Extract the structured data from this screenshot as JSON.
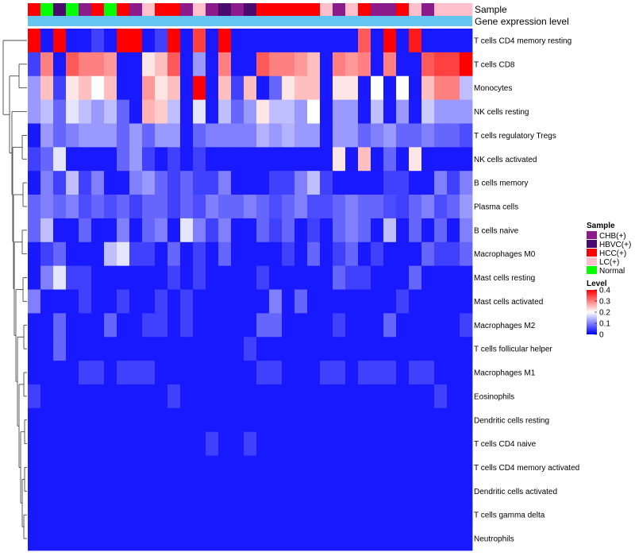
{
  "chart_data": {
    "type": "heatmap",
    "annotation_labels": {
      "sample": "Sample",
      "gene_expression": "Gene expression level"
    },
    "rows": [
      "T cells CD4 memory resting",
      "T cells CD8",
      "Monocytes",
      "NK cells resting",
      "T cells regulatory  Tregs",
      "NK cells activated",
      "B cells memory",
      "Plasma cells",
      "B cells naive",
      "Macrophages M0",
      "Mast cells resting",
      "Mast cells activated",
      "Macrophages M2",
      "T cells follicular helper",
      "Macrophages M1",
      "Eosinophils",
      "Dendritic cells resting",
      "T cells CD4 naive",
      "T cells CD4 memory activated",
      "Dendritic cells activated",
      "T cells gamma delta",
      "Neutrophils"
    ],
    "sample_groups": [
      "HCC",
      "NOR",
      "HBV",
      "NOR",
      "CHB",
      "HCC",
      "NOR",
      "HCC",
      "CHB",
      "LC",
      "HCC",
      "HCC",
      "CHB",
      "LC",
      "CHB",
      "HBV",
      "CHB",
      "HBV",
      "HCC",
      "HCC",
      "HCC",
      "HCC",
      "HCC",
      "LC",
      "CHB",
      "LC",
      "HCC",
      "CHB",
      "CHB",
      "HCC",
      "LC",
      "CHB",
      "LC",
      "LC",
      "LC"
    ],
    "values": [
      [
        0.4,
        0.02,
        0.4,
        0.02,
        0.02,
        0.05,
        0.02,
        0.4,
        0.4,
        0.02,
        0.05,
        0.4,
        0.02,
        0.35,
        0.02,
        0.4,
        0.02,
        0.02,
        0.02,
        0.02,
        0.02,
        0.02,
        0.02,
        0.02,
        0.02,
        0.02,
        0.33,
        0.02,
        0.4,
        0.02,
        0.38,
        0.02,
        0.02,
        0.02,
        0.02
      ],
      [
        0.05,
        0.3,
        0.02,
        0.33,
        0.3,
        0.3,
        0.28,
        0.02,
        0.02,
        0.22,
        0.25,
        0.33,
        0.02,
        0.12,
        0.02,
        0.3,
        0.02,
        0.02,
        0.33,
        0.3,
        0.3,
        0.28,
        0.25,
        0.02,
        0.3,
        0.28,
        0.3,
        0.02,
        0.3,
        0.02,
        0.02,
        0.33,
        0.35,
        0.35,
        0.4
      ],
      [
        0.12,
        0.25,
        0.05,
        0.22,
        0.25,
        0.2,
        0.25,
        0.02,
        0.02,
        0.28,
        0.22,
        0.25,
        0.02,
        0.4,
        0.02,
        0.25,
        0.05,
        0.25,
        0.02,
        0.08,
        0.22,
        0.25,
        0.25,
        0.02,
        0.22,
        0.22,
        0.02,
        0.2,
        0.02,
        0.2,
        0.02,
        0.25,
        0.3,
        0.3,
        0.15
      ],
      [
        0.12,
        0.15,
        0.08,
        0.18,
        0.15,
        0.12,
        0.15,
        0.08,
        0.02,
        0.26,
        0.24,
        0.15,
        0.02,
        0.18,
        0.02,
        0.15,
        0.08,
        0.12,
        0.22,
        0.15,
        0.15,
        0.12,
        0.2,
        0.02,
        0.12,
        0.12,
        0.02,
        0.15,
        0.02,
        0.12,
        0.02,
        0.16,
        0.12,
        0.12,
        0.12
      ],
      [
        0.02,
        0.12,
        0.08,
        0.1,
        0.12,
        0.12,
        0.12,
        0.08,
        0.12,
        0.08,
        0.12,
        0.12,
        0.02,
        0.08,
        0.1,
        0.1,
        0.1,
        0.1,
        0.14,
        0.12,
        0.14,
        0.12,
        0.12,
        0.02,
        0.12,
        0.12,
        0.08,
        0.1,
        0.12,
        0.08,
        0.08,
        0.1,
        0.08,
        0.08,
        0.06
      ],
      [
        0.05,
        0.08,
        0.18,
        0.02,
        0.02,
        0.02,
        0.02,
        0.08,
        0.12,
        0.05,
        0.02,
        0.05,
        0.02,
        0.05,
        0.02,
        0.02,
        0.02,
        0.02,
        0.02,
        0.02,
        0.02,
        0.02,
        0.02,
        0.02,
        0.22,
        0.02,
        0.25,
        0.02,
        0.08,
        0.02,
        0.22,
        0.02,
        0.02,
        0.02,
        0.02
      ],
      [
        0.02,
        0.1,
        0.05,
        0.15,
        0.05,
        0.1,
        0.02,
        0.02,
        0.1,
        0.12,
        0.08,
        0.05,
        0.08,
        0.05,
        0.05,
        0.1,
        0.02,
        0.02,
        0.02,
        0.05,
        0.05,
        0.1,
        0.15,
        0.05,
        0.02,
        0.02,
        0.02,
        0.02,
        0.05,
        0.05,
        0.02,
        0.02,
        0.1,
        0.05,
        0.1
      ],
      [
        0.08,
        0.1,
        0.08,
        0.1,
        0.06,
        0.08,
        0.06,
        0.08,
        0.05,
        0.08,
        0.08,
        0.05,
        0.08,
        0.06,
        0.1,
        0.08,
        0.08,
        0.1,
        0.08,
        0.06,
        0.08,
        0.1,
        0.06,
        0.06,
        0.08,
        0.1,
        0.08,
        0.08,
        0.06,
        0.05,
        0.08,
        0.1,
        0.06,
        0.08,
        0.12
      ],
      [
        0.08,
        0.15,
        0.02,
        0.02,
        0.08,
        0.02,
        0.02,
        0.1,
        0.02,
        0.08,
        0.1,
        0.02,
        0.18,
        0.1,
        0.05,
        0.1,
        0.02,
        0.02,
        0.08,
        0.05,
        0.08,
        0.02,
        0.05,
        0.02,
        0.08,
        0.1,
        0.08,
        0.02,
        0.15,
        0.02,
        0.08,
        0.02,
        0.08,
        0.02,
        0.1
      ],
      [
        0.02,
        0.05,
        0.08,
        0.02,
        0.02,
        0.02,
        0.15,
        0.18,
        0.05,
        0.05,
        0.02,
        0.08,
        0.02,
        0.05,
        0.02,
        0.08,
        0.02,
        0.02,
        0.02,
        0.02,
        0.05,
        0.02,
        0.08,
        0.02,
        0.05,
        0.08,
        0.02,
        0.05,
        0.02,
        0.02,
        0.02,
        0.08,
        0.05,
        0.05,
        0.08
      ],
      [
        0.02,
        0.1,
        0.18,
        0.05,
        0.05,
        0.02,
        0.02,
        0.02,
        0.02,
        0.02,
        0.02,
        0.05,
        0.02,
        0.05,
        0.02,
        0.02,
        0.02,
        0.02,
        0.05,
        0.02,
        0.02,
        0.02,
        0.02,
        0.02,
        0.08,
        0.05,
        0.05,
        0.02,
        0.02,
        0.02,
        0.08,
        0.02,
        0.02,
        0.02,
        0.02
      ],
      [
        0.1,
        0.02,
        0.02,
        0.02,
        0.05,
        0.02,
        0.02,
        0.05,
        0.02,
        0.02,
        0.05,
        0.02,
        0.05,
        0.02,
        0.02,
        0.02,
        0.02,
        0.02,
        0.02,
        0.1,
        0.02,
        0.08,
        0.02,
        0.02,
        0.02,
        0.02,
        0.02,
        0.02,
        0.02,
        0.05,
        0.02,
        0.02,
        0.02,
        0.02,
        0.02
      ],
      [
        0.02,
        0.02,
        0.08,
        0.02,
        0.02,
        0.02,
        0.08,
        0.02,
        0.02,
        0.05,
        0.05,
        0.02,
        0.05,
        0.02,
        0.02,
        0.02,
        0.02,
        0.02,
        0.08,
        0.08,
        0.02,
        0.02,
        0.02,
        0.02,
        0.05,
        0.02,
        0.02,
        0.02,
        0.08,
        0.02,
        0.02,
        0.02,
        0.02,
        0.02,
        0.05
      ],
      [
        0.02,
        0.02,
        0.08,
        0.02,
        0.02,
        0.02,
        0.02,
        0.02,
        0.02,
        0.02,
        0.02,
        0.02,
        0.02,
        0.02,
        0.02,
        0.02,
        0.02,
        0.05,
        0.02,
        0.02,
        0.02,
        0.02,
        0.02,
        0.02,
        0.02,
        0.02,
        0.02,
        0.02,
        0.02,
        0.02,
        0.02,
        0.02,
        0.02,
        0.02,
        0.02
      ],
      [
        0.02,
        0.02,
        0.02,
        0.02,
        0.05,
        0.05,
        0.02,
        0.05,
        0.05,
        0.05,
        0.02,
        0.02,
        0.02,
        0.02,
        0.02,
        0.02,
        0.02,
        0.02,
        0.05,
        0.05,
        0.02,
        0.02,
        0.02,
        0.05,
        0.05,
        0.02,
        0.05,
        0.05,
        0.05,
        0.02,
        0.05,
        0.05,
        0.02,
        0.02,
        0.02
      ],
      [
        0.05,
        0.02,
        0.02,
        0.02,
        0.02,
        0.02,
        0.02,
        0.02,
        0.02,
        0.02,
        0.02,
        0.05,
        0.02,
        0.02,
        0.02,
        0.02,
        0.02,
        0.02,
        0.02,
        0.02,
        0.02,
        0.02,
        0.02,
        0.02,
        0.02,
        0.02,
        0.02,
        0.02,
        0.02,
        0.02,
        0.02,
        0.02,
        0.05,
        0.02,
        0.02
      ],
      [
        0.02,
        0.02,
        0.02,
        0.02,
        0.02,
        0.02,
        0.02,
        0.02,
        0.02,
        0.02,
        0.02,
        0.02,
        0.02,
        0.02,
        0.02,
        0.02,
        0.02,
        0.02,
        0.02,
        0.02,
        0.02,
        0.02,
        0.02,
        0.02,
        0.02,
        0.02,
        0.02,
        0.02,
        0.02,
        0.02,
        0.02,
        0.02,
        0.02,
        0.02,
        0.02
      ],
      [
        0.02,
        0.02,
        0.02,
        0.02,
        0.02,
        0.02,
        0.02,
        0.02,
        0.02,
        0.02,
        0.02,
        0.02,
        0.02,
        0.02,
        0.05,
        0.02,
        0.02,
        0.05,
        0.02,
        0.02,
        0.02,
        0.02,
        0.02,
        0.02,
        0.02,
        0.02,
        0.02,
        0.02,
        0.02,
        0.02,
        0.02,
        0.02,
        0.02,
        0.02,
        0.02
      ],
      [
        0.02,
        0.02,
        0.02,
        0.02,
        0.02,
        0.02,
        0.02,
        0.02,
        0.02,
        0.02,
        0.02,
        0.02,
        0.02,
        0.02,
        0.02,
        0.02,
        0.02,
        0.02,
        0.02,
        0.02,
        0.02,
        0.02,
        0.02,
        0.02,
        0.02,
        0.02,
        0.02,
        0.02,
        0.02,
        0.02,
        0.02,
        0.02,
        0.02,
        0.02,
        0.02
      ],
      [
        0.02,
        0.02,
        0.02,
        0.02,
        0.02,
        0.02,
        0.02,
        0.02,
        0.02,
        0.02,
        0.02,
        0.02,
        0.02,
        0.02,
        0.02,
        0.02,
        0.02,
        0.02,
        0.02,
        0.02,
        0.02,
        0.02,
        0.02,
        0.02,
        0.02,
        0.02,
        0.02,
        0.02,
        0.02,
        0.02,
        0.02,
        0.02,
        0.02,
        0.02,
        0.02
      ],
      [
        0.02,
        0.02,
        0.02,
        0.02,
        0.02,
        0.02,
        0.02,
        0.02,
        0.02,
        0.02,
        0.02,
        0.02,
        0.02,
        0.02,
        0.02,
        0.02,
        0.02,
        0.02,
        0.02,
        0.02,
        0.02,
        0.02,
        0.02,
        0.02,
        0.02,
        0.02,
        0.02,
        0.02,
        0.02,
        0.02,
        0.02,
        0.02,
        0.02,
        0.02,
        0.02
      ],
      [
        0.02,
        0.02,
        0.02,
        0.02,
        0.02,
        0.02,
        0.02,
        0.02,
        0.02,
        0.02,
        0.02,
        0.02,
        0.02,
        0.02,
        0.02,
        0.02,
        0.02,
        0.02,
        0.02,
        0.02,
        0.02,
        0.02,
        0.02,
        0.02,
        0.02,
        0.02,
        0.02,
        0.02,
        0.02,
        0.02,
        0.02,
        0.02,
        0.02,
        0.02,
        0.02
      ]
    ],
    "legend": {
      "sample_title": "Sample",
      "sample_items": [
        {
          "key": "CHB",
          "label": "CHB(+)",
          "color": "#8B1A8B"
        },
        {
          "key": "HBV",
          "label": "HBVC(+)",
          "color": "#4B0A6E"
        },
        {
          "key": "HCC",
          "label": "HCC(+)",
          "color": "#FF0000"
        },
        {
          "key": "LC",
          "label": "LC(+)",
          "color": "#FFC0CB"
        },
        {
          "key": "NOR",
          "label": "Normal",
          "color": "#00FF00"
        }
      ],
      "level_title": "Level",
      "level_ticks": [
        0.4,
        0.3,
        0.2,
        0.1,
        0
      ],
      "level_range": [
        0,
        0.4
      ]
    },
    "colors": {
      "low": "#0000FF",
      "mid": "#FFFFFF",
      "high": "#FF0000",
      "expression_bar": "#63C5F0"
    }
  }
}
